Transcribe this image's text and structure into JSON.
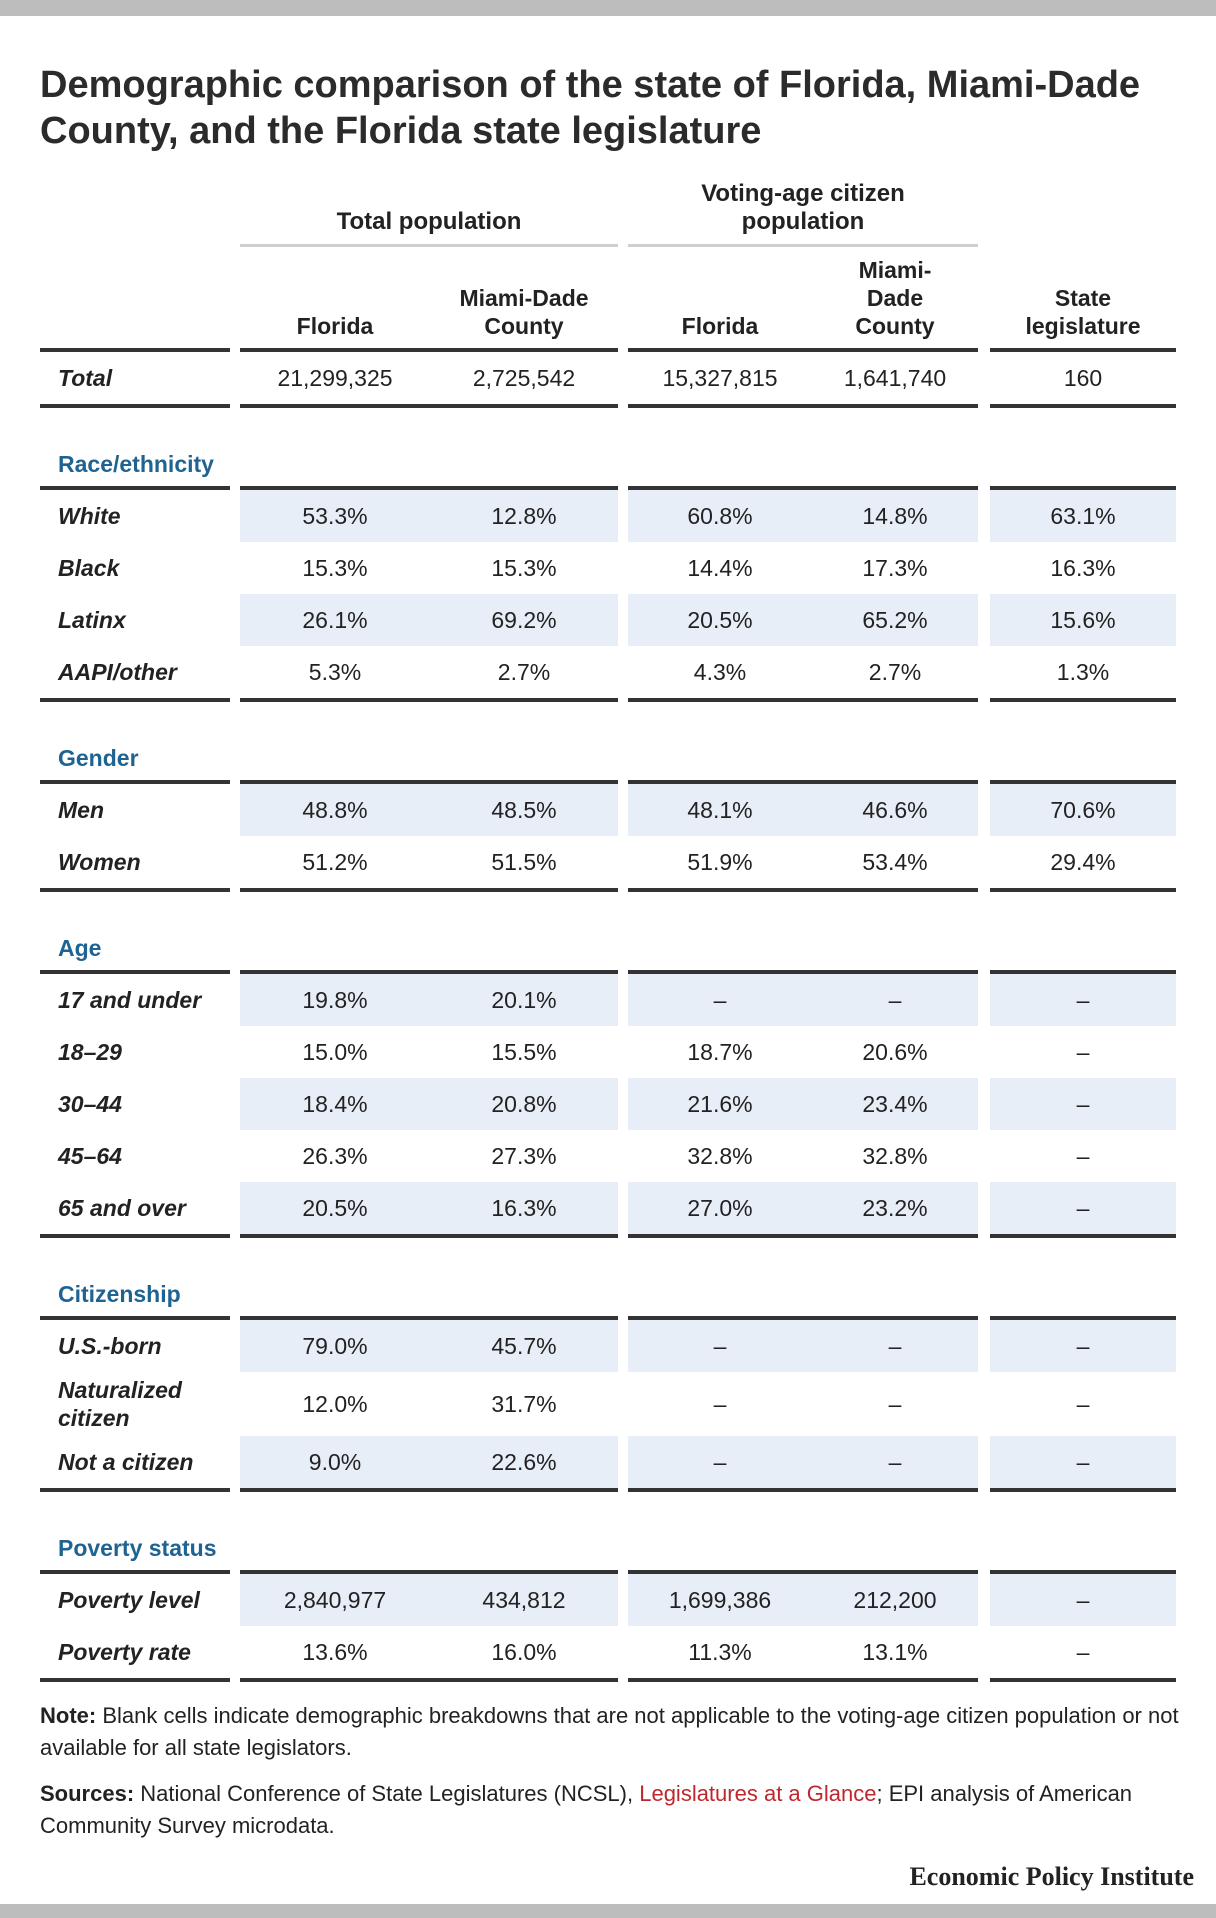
{
  "title": "Demographic comparison of the state of Florida, Miami-Dade County, and the Florida state legislature",
  "groups": {
    "total_population": "Total population",
    "voting_age_l1": "Voting-age citizen",
    "voting_age_l2": "population"
  },
  "columns": {
    "c1": [
      "Florida"
    ],
    "c2": [
      "Miami-Dade",
      "County"
    ],
    "c3": [
      "Florida"
    ],
    "c4": [
      "Miami-",
      "Dade",
      "County"
    ],
    "c5": [
      "State",
      "legislature"
    ]
  },
  "total_row": {
    "label": "Total",
    "values": [
      "21,299,325",
      "2,725,542",
      "15,327,815",
      "1,641,740",
      "160"
    ]
  },
  "sections": [
    {
      "title": "Race/ethnicity",
      "rows": [
        {
          "label": "White",
          "values": [
            "53.3%",
            "12.8%",
            "60.8%",
            "14.8%",
            "63.1%"
          ]
        },
        {
          "label": "Black",
          "values": [
            "15.3%",
            "15.3%",
            "14.4%",
            "17.3%",
            "16.3%"
          ]
        },
        {
          "label": "Latinx",
          "values": [
            "26.1%",
            "69.2%",
            "20.5%",
            "65.2%",
            "15.6%"
          ]
        },
        {
          "label": "AAPI/other",
          "values": [
            "5.3%",
            "2.7%",
            "4.3%",
            "2.7%",
            "1.3%"
          ]
        }
      ]
    },
    {
      "title": "Gender",
      "rows": [
        {
          "label": "Men",
          "values": [
            "48.8%",
            "48.5%",
            "48.1%",
            "46.6%",
            "70.6%"
          ]
        },
        {
          "label": "Women",
          "values": [
            "51.2%",
            "51.5%",
            "51.9%",
            "53.4%",
            "29.4%"
          ]
        }
      ]
    },
    {
      "title": "Age",
      "rows": [
        {
          "label": "17 and under",
          "values": [
            "19.8%",
            "20.1%",
            "–",
            "–",
            "–"
          ]
        },
        {
          "label": "18–29",
          "values": [
            "15.0%",
            "15.5%",
            "18.7%",
            "20.6%",
            "–"
          ]
        },
        {
          "label": "30–44",
          "values": [
            "18.4%",
            "20.8%",
            "21.6%",
            "23.4%",
            "–"
          ]
        },
        {
          "label": "45–64",
          "values": [
            "26.3%",
            "27.3%",
            "32.8%",
            "32.8%",
            "–"
          ]
        },
        {
          "label": "65 and over",
          "values": [
            "20.5%",
            "16.3%",
            "27.0%",
            "23.2%",
            "–"
          ]
        }
      ]
    },
    {
      "title": "Citizenship",
      "rows": [
        {
          "label": "U.S.-born",
          "values": [
            "79.0%",
            "45.7%",
            "–",
            "–",
            "–"
          ]
        },
        {
          "label": "Naturalized citizen",
          "values": [
            "12.0%",
            "31.7%",
            "–",
            "–",
            "–"
          ]
        },
        {
          "label": "Not a citizen",
          "values": [
            "9.0%",
            "22.6%",
            "–",
            "–",
            "–"
          ]
        }
      ]
    },
    {
      "title": "Poverty status",
      "rows": [
        {
          "label": "Poverty level",
          "values": [
            "2,840,977",
            "434,812",
            "1,699,386",
            "212,200",
            "–"
          ]
        },
        {
          "label": "Poverty rate",
          "values": [
            "13.6%",
            "16.0%",
            "11.3%",
            "13.1%",
            "–"
          ]
        }
      ]
    }
  ],
  "note": {
    "label": "Note:",
    "text": "Blank cells indicate demographic breakdowns that are not applicable to the voting-age citizen population or not available for all state legislators."
  },
  "sources": {
    "label": "Sources:",
    "text_before": "National Conference of State Legislatures (NCSL),",
    "link": "Legislatures at a Glance",
    "text_after": "; EPI analysis of American Community Survey microdata."
  },
  "logo": "Economic Policy Institute",
  "colors": {
    "section": "#1f6392",
    "band": "#e8eef7",
    "link": "#c0272d"
  }
}
